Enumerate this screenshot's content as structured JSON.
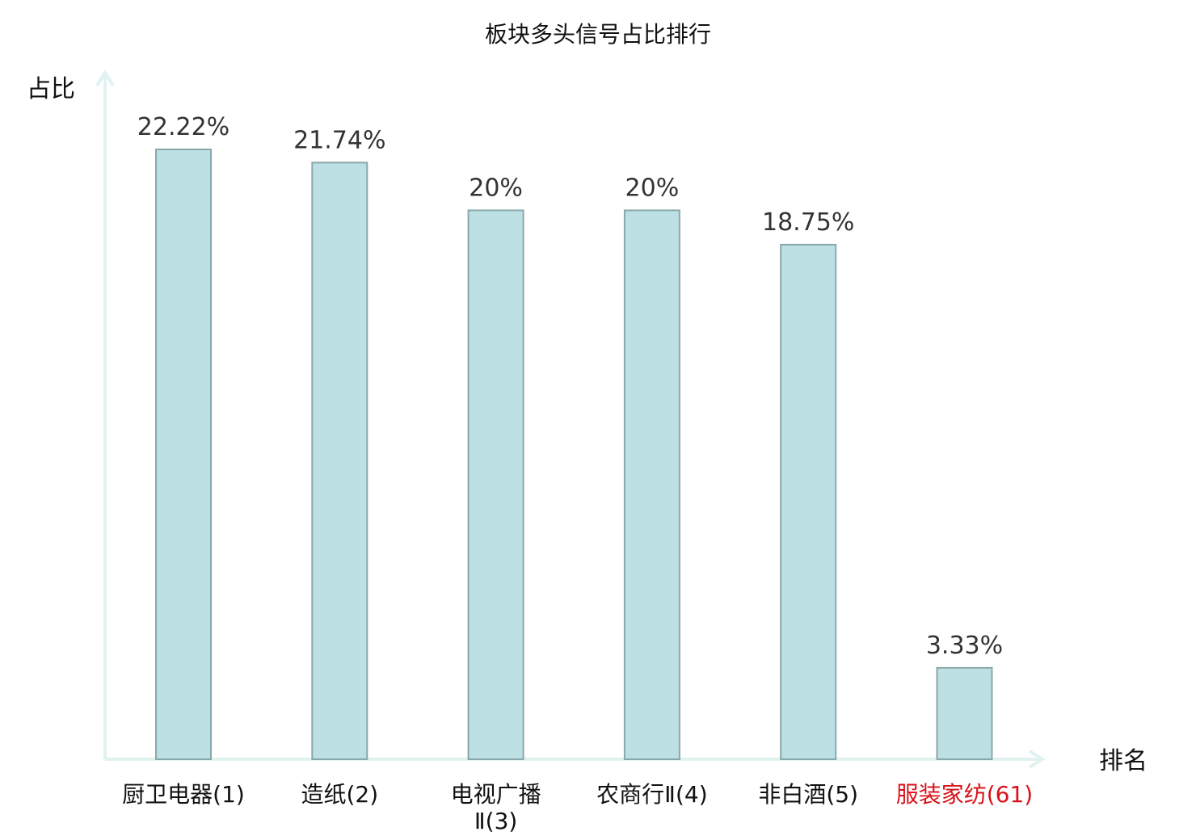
{
  "chart_data": {
    "type": "bar",
    "title": "板块多头信号占比排行",
    "ylabel": "占比",
    "xlabel": "排名",
    "categories": [
      [
        "厨卫电器(1)"
      ],
      [
        "造纸(2)"
      ],
      [
        "电视广播",
        "Ⅱ(3)"
      ],
      [
        "农商行Ⅱ(4)"
      ],
      [
        "非白酒(5)"
      ],
      [
        "服装家纺(61)"
      ]
    ],
    "values": [
      22.22,
      21.74,
      20,
      20,
      18.75,
      3.33
    ],
    "value_labels": [
      "22.22%",
      "21.74%",
      "20%",
      "20%",
      "18.75%",
      "3.33%"
    ],
    "highlight_index": 5,
    "ylim": [
      0,
      25
    ],
    "grid": false,
    "colors": {
      "bar_fill": "#bce0e3",
      "bar_stroke": "#8aa8aa",
      "axis": "#e0f2ef",
      "text": "#111111",
      "value_text": "#333333",
      "highlight_text": "#d9111a"
    }
  }
}
